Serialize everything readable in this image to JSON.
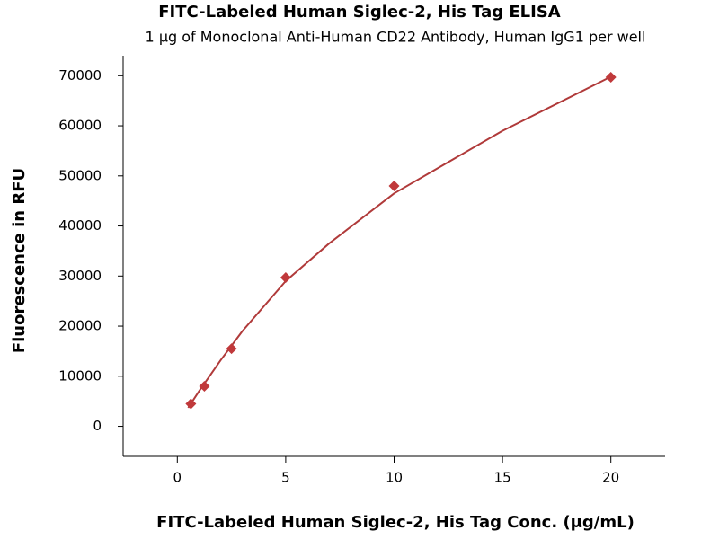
{
  "chart_data": {
    "type": "scatter",
    "title": "FITC-Labeled Human Siglec-2, His Tag ELISA",
    "subtitle": "1 μg of Monoclonal Anti-Human CD22 Antibody, Human IgG1 per well",
    "x_label": "FITC-Labeled Human Siglec-2, His Tag Conc. (μg/mL)",
    "y_label": "Fluorescence in RFU",
    "x": [
      0.625,
      1.25,
      2.5,
      5,
      10,
      20
    ],
    "values": [
      4500,
      8000,
      15500,
      29700,
      48000,
      69700
    ],
    "color": "#c0393b",
    "fit": {
      "x": [
        0.5,
        1,
        2,
        3,
        5,
        7,
        10,
        15,
        20
      ],
      "values": [
        3700,
        7000,
        13200,
        19000,
        29000,
        36500,
        46500,
        59000,
        69800
      ],
      "color": "#b03a3a"
    },
    "xlim": [
      -2.5,
      22.5
    ],
    "xticks": [
      0,
      5,
      10,
      15,
      20
    ],
    "ylim": [
      -6000,
      74000
    ],
    "yticks": [
      0,
      10000,
      20000,
      30000,
      40000,
      50000,
      60000,
      70000
    ]
  }
}
